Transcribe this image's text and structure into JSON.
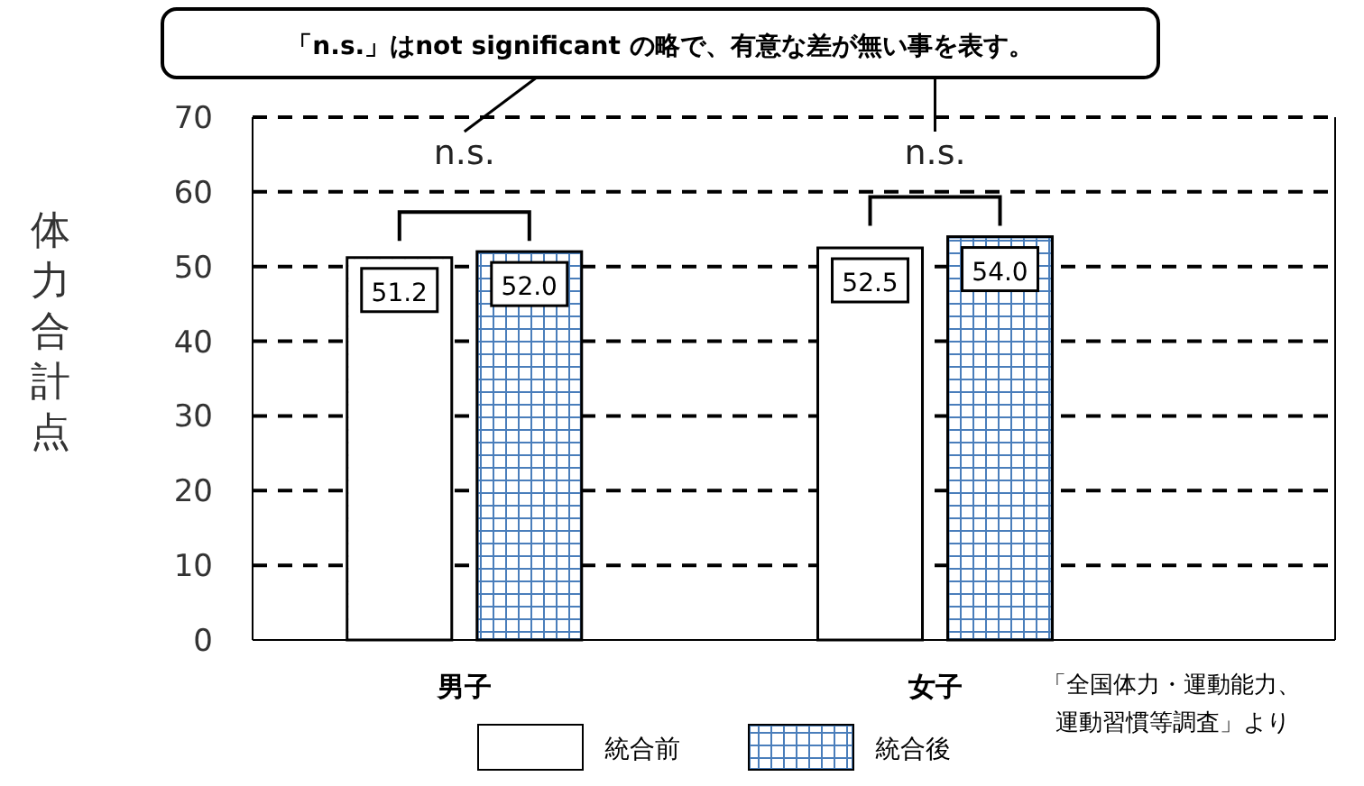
{
  "chart_data": {
    "type": "bar",
    "ylabel": "体力合計点",
    "categories": [
      "男子",
      "女子"
    ],
    "series": [
      {
        "name": "統合前",
        "color": "#ffffff",
        "values": [
          51.2,
          52.5
        ],
        "value_labels": [
          "51.2",
          "52.5"
        ]
      },
      {
        "name": "統合後",
        "color": "#4a7ebb",
        "values": [
          52.0,
          54.0
        ],
        "value_labels": [
          "52.0",
          "54.0"
        ]
      }
    ],
    "ylim": [
      0,
      70
    ],
    "yticks": [
      0,
      10,
      20,
      30,
      40,
      50,
      60,
      70
    ],
    "grid": "y",
    "line_style": "dashed",
    "legend": "bottom",
    "annotations": [
      "「n.s.」はnot significant の略で、有意な差が無い事を表す。",
      "n.s.",
      "n.s.",
      "「全国体力・運動能力、運動習慣等調査」より"
    ]
  }
}
